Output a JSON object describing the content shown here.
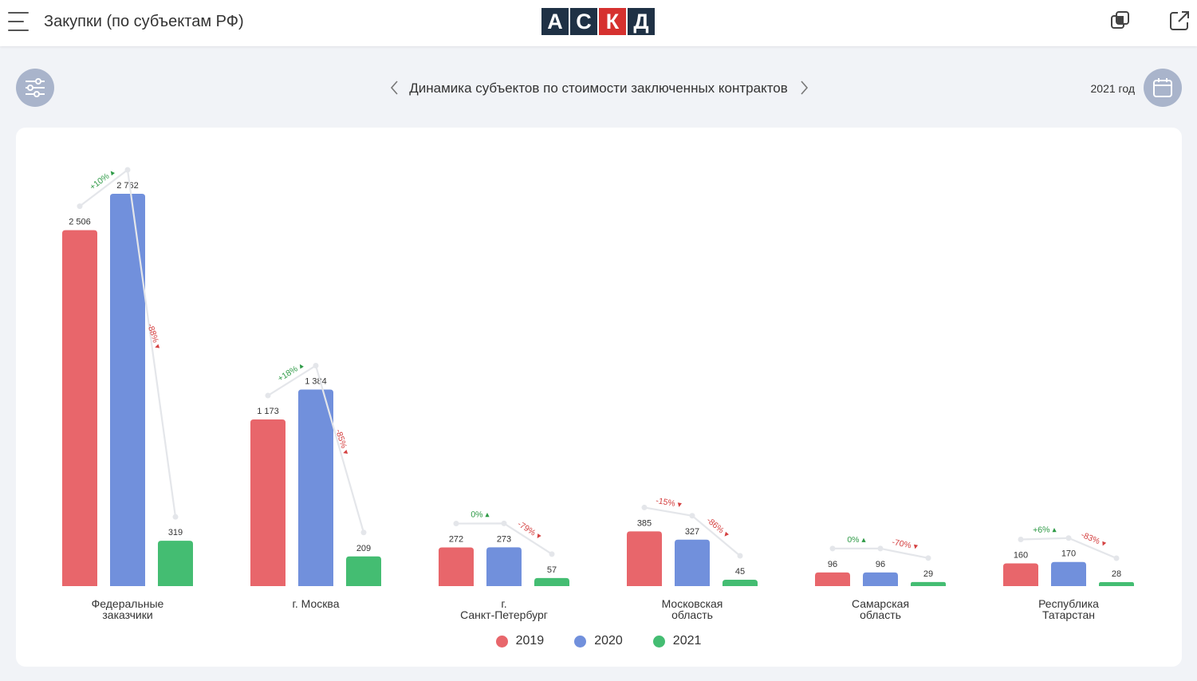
{
  "header": {
    "title": "Закупки (по субъектам РФ)",
    "logo_letters": [
      "А",
      "С",
      "К",
      "Д"
    ]
  },
  "toolbar": {
    "chart_title": "Динамика субъектов по стоимости заключенных контрактов",
    "period_label": "2021 год"
  },
  "icons": {
    "menu": "menu-icon",
    "filter": "filter-sliders-icon",
    "calendar": "calendar-icon",
    "window": "copy-window-icon",
    "export": "open-external-icon",
    "prev": "chevron-left-icon",
    "next": "chevron-right-icon"
  },
  "colors": {
    "2019": "#e8666b",
    "2020": "#7190dc",
    "2021": "#44bd72",
    "up": "#2e9a46",
    "down": "#d44040",
    "brand_dark": "#1f3145",
    "brand_red": "#d6312f"
  },
  "chart_data": {
    "type": "bar",
    "categories": [
      "Федеральные\nзаказчики",
      "г. Москва",
      "г.\nСанкт-Петербург",
      "Московская\nобласть",
      "Самарская\nобласть",
      "Республика\nТатарстан"
    ],
    "series": [
      {
        "name": "2019",
        "values": [
          2506,
          1173,
          272,
          385,
          96,
          160
        ],
        "labels": [
          "2 506",
          "1 173",
          "272",
          "385",
          "96",
          "160"
        ]
      },
      {
        "name": "2020",
        "values": [
          2762,
          1384,
          273,
          327,
          96,
          170
        ],
        "labels": [
          "2 762",
          "1 384",
          "273",
          "327",
          "96",
          "170"
        ]
      },
      {
        "name": "2021",
        "values": [
          319,
          209,
          57,
          45,
          29,
          28
        ],
        "labels": [
          "319",
          "209",
          "57",
          "45",
          "29",
          "28"
        ]
      }
    ],
    "changes": [
      {
        "a": "+10%",
        "b": "-88%"
      },
      {
        "a": "+18%",
        "b": "-85%"
      },
      {
        "a": "0%",
        "b": "-79%"
      },
      {
        "a": "-15%",
        "b": "-86%"
      },
      {
        "a": "0%",
        "b": "-70%"
      },
      {
        "a": "+6%",
        "b": "-83%"
      }
    ],
    "legend": [
      "2019",
      "2020",
      "2021"
    ],
    "legend_position": "bottom",
    "grid": false
  }
}
